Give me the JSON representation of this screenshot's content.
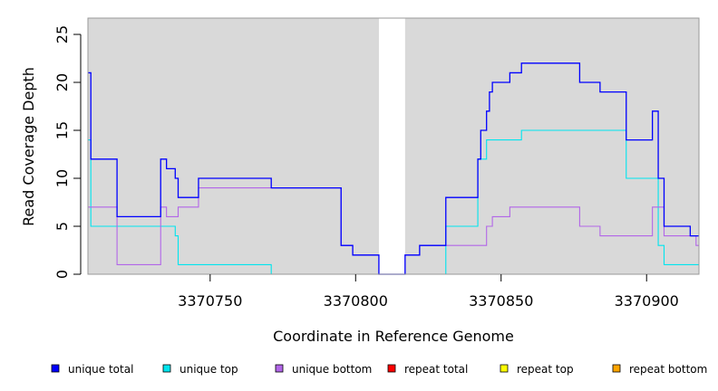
{
  "chart_data": {
    "type": "line",
    "title": "",
    "xlabel": "Coordinate in Reference Genome",
    "ylabel": "Read Coverage Depth",
    "xlim": [
      3370708,
      3370918
    ],
    "ylim": [
      0,
      26.7
    ],
    "x_ticks": [
      3370750,
      3370800,
      3370850,
      3370900
    ],
    "x_tick_labels": [
      "3370750",
      "3370800",
      "3370850",
      "3370900"
    ],
    "y_ticks": [
      0,
      5,
      10,
      15,
      20,
      25
    ],
    "y_tick_labels": [
      "0",
      "5",
      "10",
      "15",
      "20",
      "25"
    ],
    "grid": false,
    "background_color": "#d9d9d9",
    "gap_region": [
      3370808,
      3370817
    ],
    "legend_position": "bottom",
    "series": [
      {
        "name": "unique total",
        "color": "#0000ff",
        "points": [
          [
            3370708,
            21
          ],
          [
            3370709,
            21
          ],
          [
            3370709,
            12
          ],
          [
            3370718,
            12
          ],
          [
            3370718,
            6
          ],
          [
            3370733,
            6
          ],
          [
            3370733,
            12
          ],
          [
            3370735,
            12
          ],
          [
            3370735,
            11
          ],
          [
            3370738,
            11
          ],
          [
            3370738,
            10
          ],
          [
            3370739,
            10
          ],
          [
            3370739,
            8
          ],
          [
            3370746,
            8
          ],
          [
            3370746,
            10
          ],
          [
            3370771,
            10
          ],
          [
            3370771,
            9
          ],
          [
            3370795,
            9
          ],
          [
            3370795,
            3
          ],
          [
            3370799,
            3
          ],
          [
            3370799,
            2
          ],
          [
            3370808,
            2
          ],
          [
            3370808,
            0
          ],
          [
            3370817,
            0
          ],
          [
            3370817,
            2
          ],
          [
            3370822,
            2
          ],
          [
            3370822,
            3
          ],
          [
            3370831,
            3
          ],
          [
            3370831,
            8
          ],
          [
            3370842,
            8
          ],
          [
            3370842,
            12
          ],
          [
            3370843,
            12
          ],
          [
            3370843,
            15
          ],
          [
            3370845,
            15
          ],
          [
            3370845,
            17
          ],
          [
            3370846,
            17
          ],
          [
            3370846,
            19
          ],
          [
            3370847,
            19
          ],
          [
            3370847,
            20
          ],
          [
            3370853,
            20
          ],
          [
            3370853,
            21
          ],
          [
            3370857,
            21
          ],
          [
            3370857,
            22
          ],
          [
            3370877,
            22
          ],
          [
            3370877,
            20
          ],
          [
            3370884,
            20
          ],
          [
            3370884,
            19
          ],
          [
            3370893,
            19
          ],
          [
            3370893,
            14
          ],
          [
            3370902,
            14
          ],
          [
            3370902,
            17
          ],
          [
            3370904,
            17
          ],
          [
            3370904,
            10
          ],
          [
            3370906,
            10
          ],
          [
            3370906,
            5
          ],
          [
            3370915,
            5
          ],
          [
            3370915,
            4
          ],
          [
            3370918,
            4
          ]
        ]
      },
      {
        "name": "unique top",
        "color": "#00e5ee",
        "points": [
          [
            3370708,
            14
          ],
          [
            3370709,
            14
          ],
          [
            3370709,
            5
          ],
          [
            3370738,
            5
          ],
          [
            3370738,
            4
          ],
          [
            3370739,
            4
          ],
          [
            3370739,
            1
          ],
          [
            3370771,
            1
          ],
          [
            3370771,
            0
          ],
          [
            3370831,
            0
          ],
          [
            3370831,
            5
          ],
          [
            3370842,
            5
          ],
          [
            3370842,
            12
          ],
          [
            3370845,
            12
          ],
          [
            3370845,
            14
          ],
          [
            3370857,
            14
          ],
          [
            3370857,
            15
          ],
          [
            3370893,
            15
          ],
          [
            3370893,
            10
          ],
          [
            3370904,
            10
          ],
          [
            3370904,
            3
          ],
          [
            3370906,
            3
          ],
          [
            3370906,
            1
          ],
          [
            3370918,
            1
          ]
        ]
      },
      {
        "name": "unique bottom",
        "color": "#b266e8",
        "points": [
          [
            3370708,
            7
          ],
          [
            3370718,
            7
          ],
          [
            3370718,
            1
          ],
          [
            3370733,
            1
          ],
          [
            3370733,
            7
          ],
          [
            3370735,
            7
          ],
          [
            3370735,
            6
          ],
          [
            3370739,
            6
          ],
          [
            3370739,
            7
          ],
          [
            3370746,
            7
          ],
          [
            3370746,
            9
          ],
          [
            3370771,
            9
          ],
          [
            3370771,
            9
          ],
          [
            3370795,
            9
          ],
          [
            3370795,
            3
          ],
          [
            3370799,
            3
          ],
          [
            3370799,
            2
          ],
          [
            3370808,
            2
          ],
          [
            3370808,
            0
          ],
          [
            3370817,
            0
          ],
          [
            3370817,
            2
          ],
          [
            3370822,
            2
          ],
          [
            3370822,
            3
          ],
          [
            3370845,
            3
          ],
          [
            3370845,
            5
          ],
          [
            3370847,
            5
          ],
          [
            3370847,
            6
          ],
          [
            3370853,
            6
          ],
          [
            3370853,
            7
          ],
          [
            3370877,
            7
          ],
          [
            3370877,
            5
          ],
          [
            3370884,
            5
          ],
          [
            3370884,
            4
          ],
          [
            3370902,
            4
          ],
          [
            3370902,
            7
          ],
          [
            3370906,
            7
          ],
          [
            3370906,
            4
          ],
          [
            3370917,
            4
          ],
          [
            3370917,
            3
          ],
          [
            3370918,
            3
          ]
        ]
      },
      {
        "name": "repeat total",
        "color": "#ff0000",
        "points": [
          [
            3370708,
            0
          ],
          [
            3370918,
            0
          ]
        ]
      },
      {
        "name": "repeat top",
        "color": "#ffff00",
        "points": [
          [
            3370708,
            0
          ],
          [
            3370918,
            0
          ]
        ]
      },
      {
        "name": "repeat bottom",
        "color": "#ffa500",
        "points": [
          [
            3370708,
            0
          ],
          [
            3370918,
            0
          ]
        ]
      }
    ]
  }
}
